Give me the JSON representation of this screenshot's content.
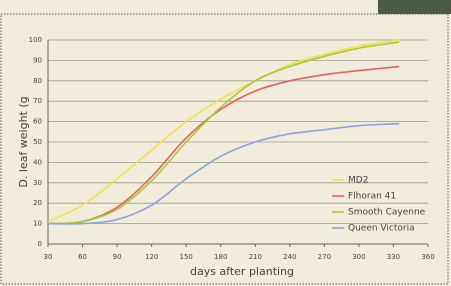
{
  "chart_data": {
    "type": "line",
    "ylabel": "D. leaf weight (g",
    "xlabel": "days after planting",
    "x": [
      30,
      60,
      90,
      120,
      150,
      180,
      210,
      240,
      270,
      300,
      335
    ],
    "series": [
      {
        "name": "MD2",
        "color": "#f2e04a",
        "values": [
          11,
          19,
          32,
          46,
          60,
          71,
          80,
          88,
          93,
          97,
          100
        ]
      },
      {
        "name": "Flhoran 41",
        "color": "#e8605a",
        "values": [
          10,
          11,
          18,
          33,
          52,
          66,
          75,
          80,
          83,
          85,
          87
        ]
      },
      {
        "name": "Smooth Cayenne",
        "color": "#a8c838",
        "values": [
          10,
          11,
          17,
          31,
          50,
          67,
          80,
          87,
          92,
          96,
          99
        ]
      },
      {
        "name": "Queen Victoria",
        "color": "#88a4e4",
        "values": [
          10,
          10,
          12,
          19,
          32,
          43,
          50,
          54,
          56,
          58,
          59
        ]
      }
    ],
    "xlim": [
      30,
      360
    ],
    "xticks": [
      30,
      60,
      90,
      120,
      150,
      180,
      210,
      240,
      270,
      300,
      330,
      360
    ],
    "ylim": [
      0,
      100
    ],
    "yticks": [
      0,
      10,
      20,
      30,
      40,
      50,
      60,
      70,
      80,
      90,
      100
    ],
    "grid": true,
    "legend": "lower right"
  }
}
